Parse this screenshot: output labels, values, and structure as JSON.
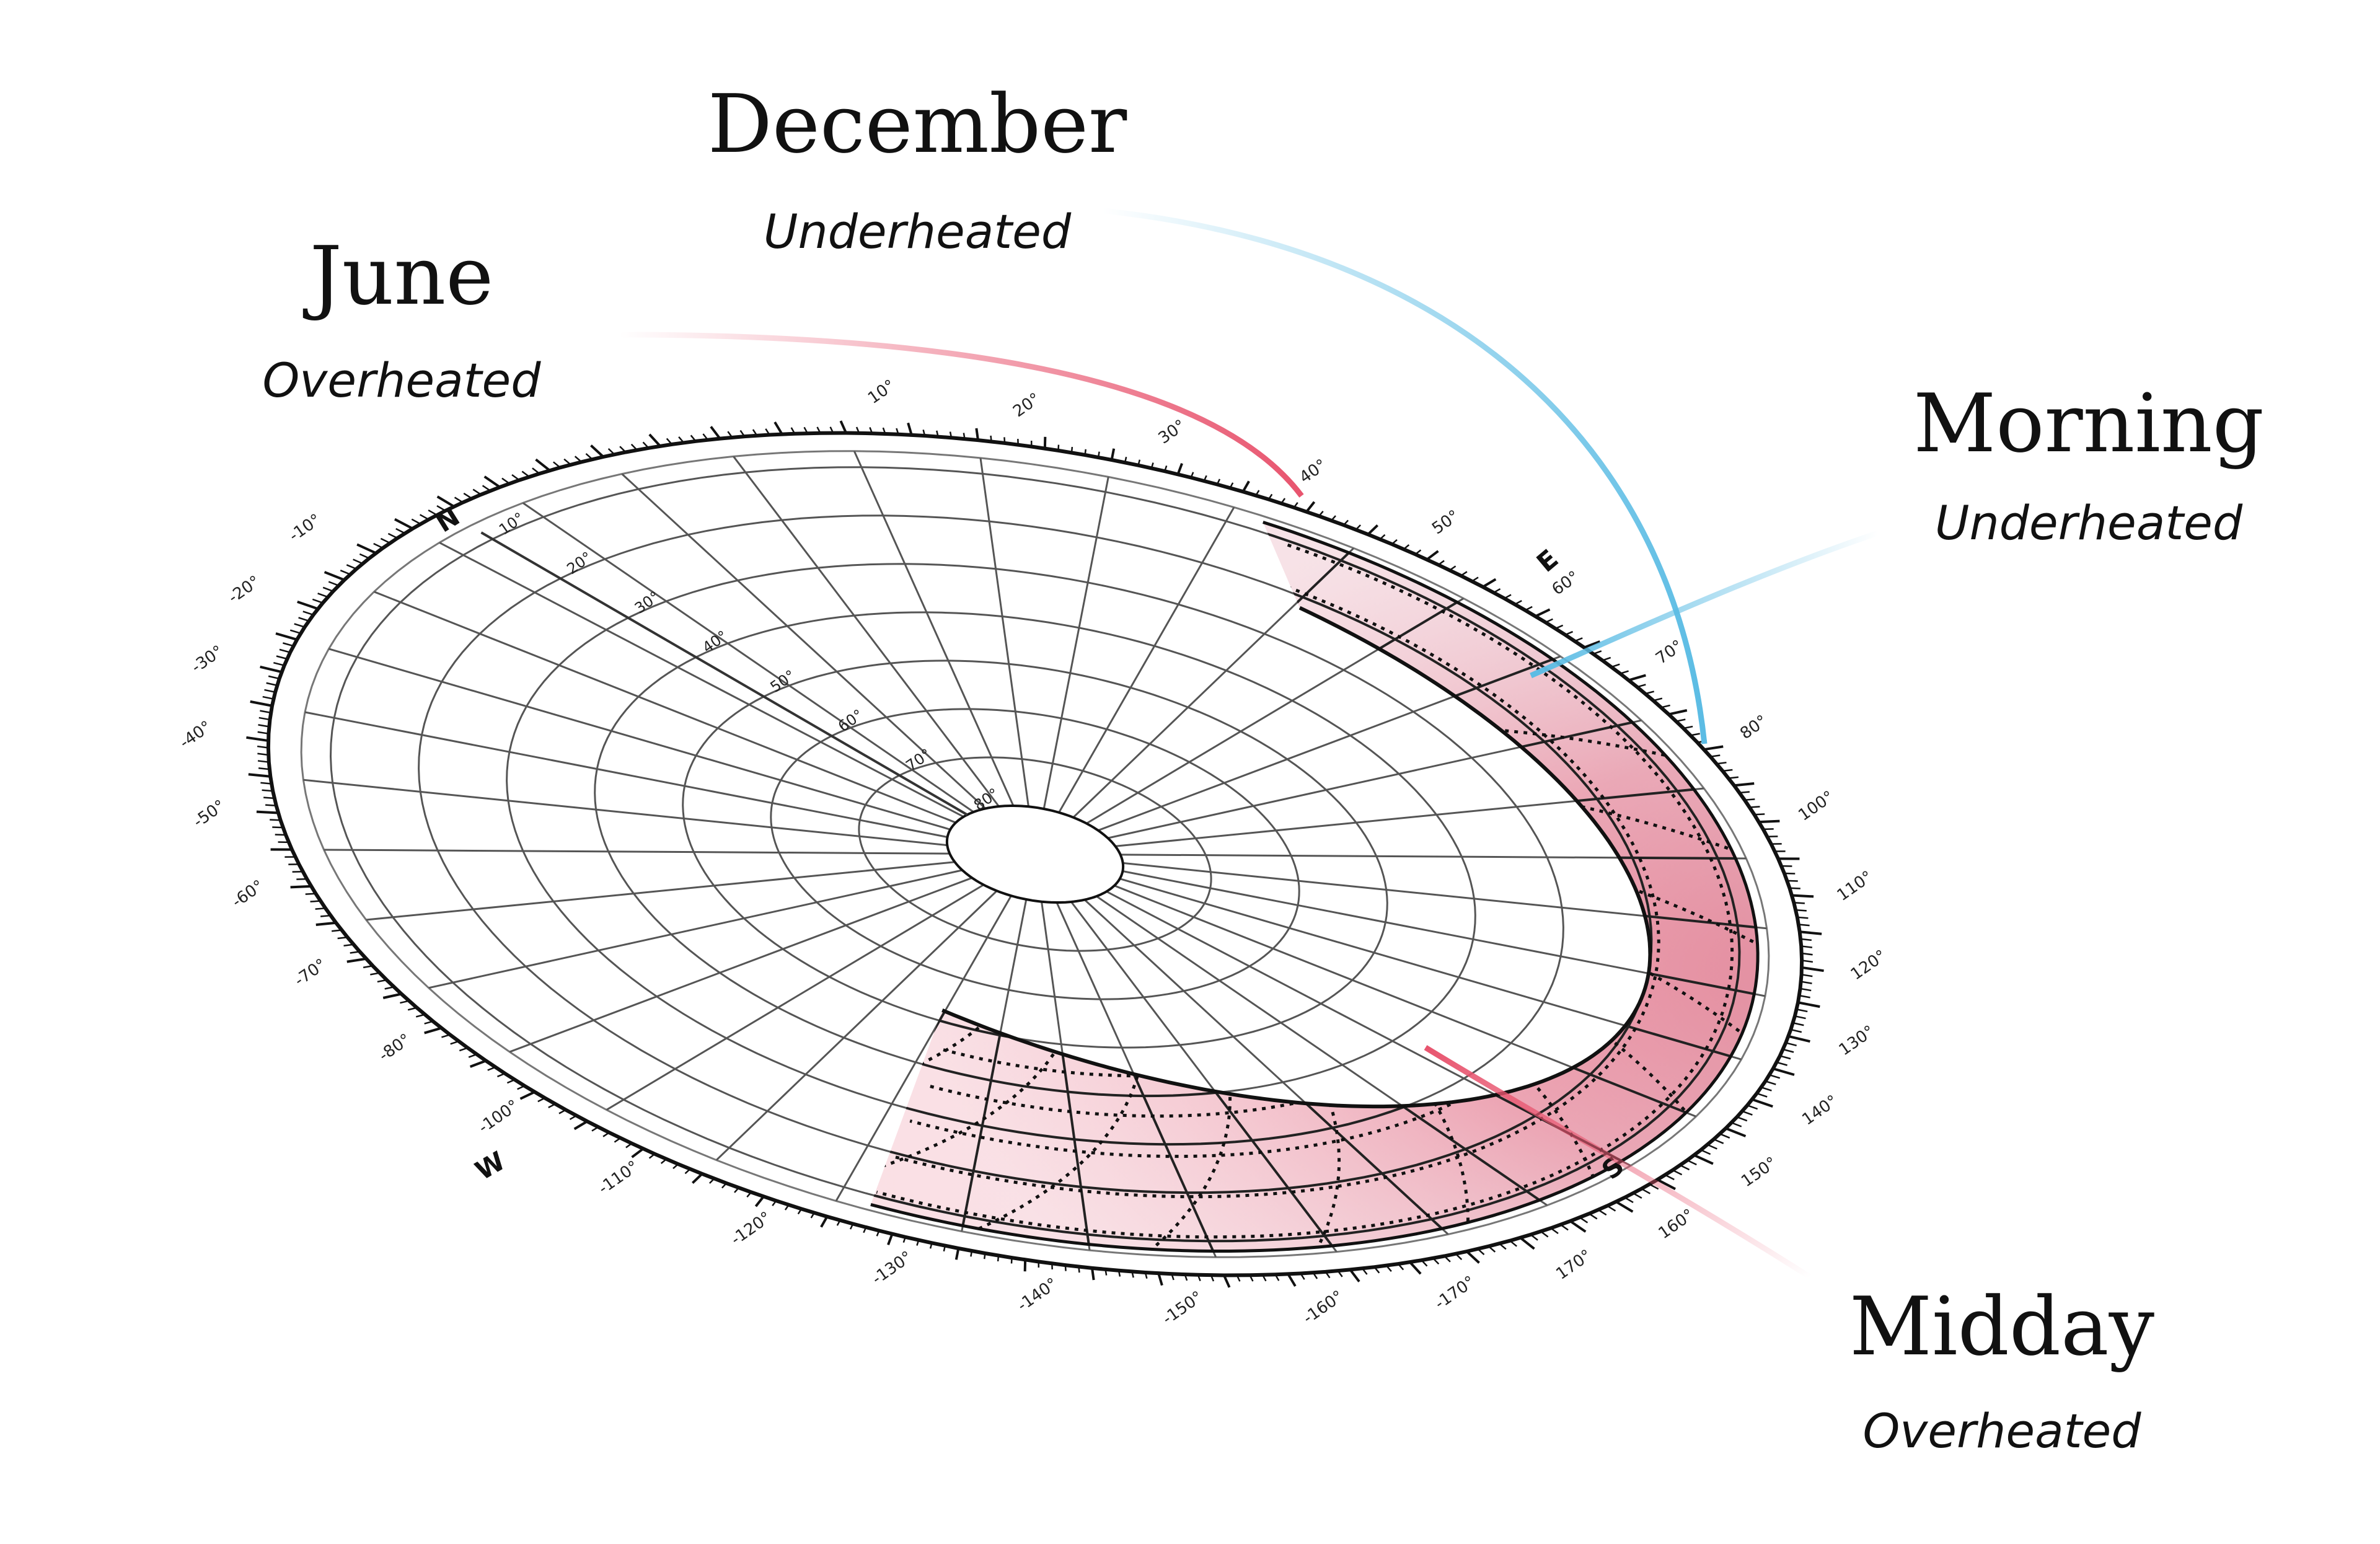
{
  "annotations": [
    {
      "title": "December",
      "subtitle": "Underheated",
      "color": "#5bbce4"
    },
    {
      "title": "June",
      "subtitle": "Overheated",
      "color": "#e8546e"
    },
    {
      "title": "Morning",
      "subtitle": "Underheated",
      "color": "#5bbce4"
    },
    {
      "title": "Midday",
      "subtitle": "Overheated",
      "color": "#e8546e"
    }
  ],
  "compass": {
    "north": "N",
    "east": "E",
    "south": "S",
    "west": "W"
  },
  "azimuth_labels": [
    "-10°",
    "-20°",
    "-30°",
    "-40°",
    "-50°",
    "-60°",
    "-70°",
    "-80°",
    "-100°",
    "-110°",
    "-120°",
    "-130°",
    "-140°",
    "-150°",
    "-160°",
    "-170°",
    "170°",
    "160°",
    "150°",
    "140°",
    "130°",
    "120°",
    "110°",
    "100°",
    "80°",
    "70°",
    "60°",
    "50°",
    "40°",
    "30°",
    "20°",
    "10°"
  ],
  "altitude_labels": [
    "10°",
    "20°",
    "30°",
    "40°",
    "50°",
    "60°",
    "70°",
    "80°"
  ],
  "colors": {
    "overheated": "#e8546e",
    "underheated": "#5bbce4",
    "grid": "#555555",
    "outline": "#111111"
  }
}
